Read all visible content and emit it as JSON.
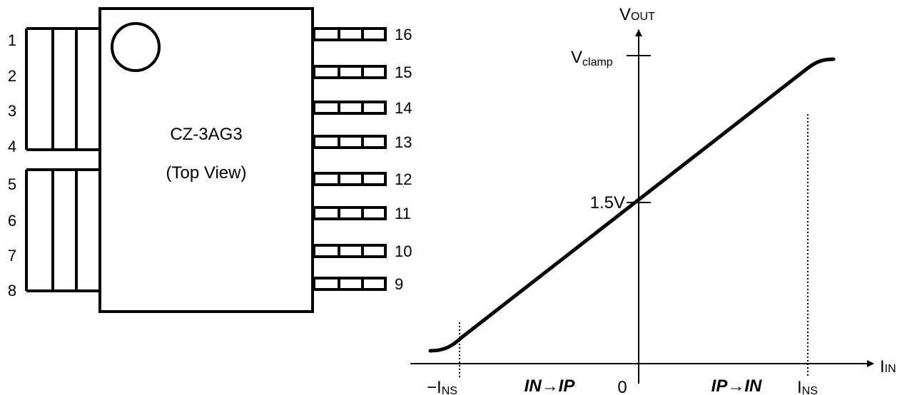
{
  "package": {
    "part_name": "CZ-3AG3",
    "view_label": "(Top View)",
    "left_pins": [
      "1",
      "2",
      "3",
      "4",
      "5",
      "6",
      "7",
      "8"
    ],
    "right_pins": [
      "16",
      "15",
      "14",
      "13",
      "12",
      "11",
      "10",
      "9"
    ]
  },
  "transfer": {
    "y_axis": {
      "main": "V",
      "sub": "OUT"
    },
    "x_axis": {
      "main": "I",
      "sub": "IN"
    },
    "vclamp": {
      "main": "V",
      "sub": "clamp"
    },
    "offset_label": "1.5V",
    "origin_label": "0",
    "neg_ins": {
      "main": "−I",
      "sub": "NS"
    },
    "pos_ins": {
      "main": "I",
      "sub": "NS"
    },
    "region_left": "IN→IP",
    "region_right": "IP→IN"
  },
  "colors": {
    "stroke": "#000000",
    "background": "#ffffff"
  }
}
